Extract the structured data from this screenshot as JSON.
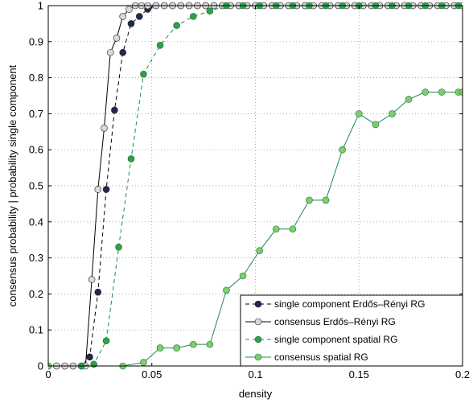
{
  "chart_data": {
    "type": "line",
    "title": "",
    "xlabel": "density",
    "ylabel": "consensus probability | probability single component",
    "xlim": [
      0,
      0.2
    ],
    "ylim": [
      0,
      1
    ],
    "grid": true,
    "legend_position": "bottom-right",
    "x_ticks": [
      0,
      0.05,
      0.1,
      0.15,
      0.2
    ],
    "x_tick_labels": [
      "0",
      "0.05",
      "0.1",
      "0.15",
      "0.2"
    ],
    "y_ticks": [
      0,
      0.1,
      0.2,
      0.3,
      0.4,
      0.5,
      0.6,
      0.7,
      0.8,
      0.9,
      1
    ],
    "y_tick_labels": [
      "0",
      "0.1",
      "0.2",
      "0.3",
      "0.4",
      "0.5",
      "0.6",
      "0.7",
      "0.8",
      "0.9",
      "1"
    ],
    "series": [
      {
        "name": "single component Erdős–Rényi RG",
        "line_color": "#000000",
        "line_style": "dashed",
        "marker_fill": "#1f2a52",
        "x": [
          0,
          0.004,
          0.008,
          0.012,
          0.016,
          0.02,
          0.024,
          0.028,
          0.032,
          0.036,
          0.04,
          0.044,
          0.048,
          0.052,
          0.056,
          0.06,
          0.064,
          0.068,
          0.072,
          0.076,
          0.08,
          0.084,
          0.088,
          0.092,
          0.096,
          0.1,
          0.104,
          0.108,
          0.112,
          0.116,
          0.12,
          0.124,
          0.128,
          0.132,
          0.136,
          0.14,
          0.144,
          0.148,
          0.152,
          0.156,
          0.16,
          0.164,
          0.168,
          0.172,
          0.176,
          0.18,
          0.184,
          0.188,
          0.192,
          0.196,
          0.2
        ],
        "y": [
          0,
          0,
          0,
          0,
          0,
          0.025,
          0.205,
          0.49,
          0.71,
          0.87,
          0.95,
          0.97,
          0.99,
          1,
          1,
          1,
          1,
          1,
          1,
          1,
          1,
          1,
          1,
          1,
          1,
          1,
          1,
          1,
          1,
          1,
          1,
          1,
          1,
          1,
          1,
          1,
          1,
          1,
          1,
          1,
          1,
          1,
          1,
          1,
          1,
          1,
          1,
          1,
          1,
          1,
          1
        ]
      },
      {
        "name": "consensus Erdős–Rényi RG",
        "line_color": "#000000",
        "line_style": "solid",
        "marker_fill": "#d9d9d9",
        "x": [
          0,
          0.004,
          0.008,
          0.012,
          0.016,
          0.018,
          0.021,
          0.024,
          0.027,
          0.03,
          0.033,
          0.036,
          0.039,
          0.042,
          0.045,
          0.048,
          0.052,
          0.056,
          0.06,
          0.064,
          0.068,
          0.072,
          0.076,
          0.08,
          0.084,
          0.088,
          0.092,
          0.096,
          0.1,
          0.104,
          0.108,
          0.112,
          0.116,
          0.12,
          0.124,
          0.128,
          0.132,
          0.136,
          0.14,
          0.144,
          0.148,
          0.152,
          0.156,
          0.16,
          0.164,
          0.168,
          0.172,
          0.176,
          0.18,
          0.184,
          0.188,
          0.192,
          0.196,
          0.2
        ],
        "y": [
          0,
          0,
          0,
          0,
          0,
          0,
          0.24,
          0.49,
          0.66,
          0.87,
          0.91,
          0.97,
          0.99,
          1,
          1,
          1,
          1,
          1,
          1,
          1,
          1,
          1,
          1,
          1,
          1,
          1,
          1,
          1,
          1,
          1,
          1,
          1,
          1,
          1,
          1,
          1,
          1,
          1,
          1,
          1,
          1,
          1,
          1,
          1,
          1,
          1,
          1,
          1,
          1,
          1,
          1,
          1,
          1,
          1
        ]
      },
      {
        "name": "single component spatial RG",
        "line_color": "#1f8a4c",
        "line_style": "dashed",
        "marker_fill": "#2ca24a",
        "x": [
          0,
          0.016,
          0.022,
          0.028,
          0.034,
          0.04,
          0.046,
          0.054,
          0.062,
          0.07,
          0.078,
          0.086,
          0.094,
          0.102,
          0.11,
          0.118,
          0.126,
          0.134,
          0.142,
          0.15,
          0.158,
          0.166,
          0.174,
          0.182,
          0.19,
          0.198
        ],
        "y": [
          0,
          0,
          0.005,
          0.07,
          0.33,
          0.575,
          0.81,
          0.89,
          0.945,
          0.97,
          0.985,
          1,
          1,
          1,
          1,
          1,
          1,
          1,
          1,
          1,
          1,
          1,
          1,
          1,
          1,
          1
        ]
      },
      {
        "name": "consensus spatial RG",
        "line_color": "#1f8a4c",
        "line_style": "solid",
        "marker_fill": "#7ccf6a",
        "x": [
          0,
          0.036,
          0.046,
          0.054,
          0.062,
          0.07,
          0.078,
          0.086,
          0.094,
          0.102,
          0.11,
          0.118,
          0.126,
          0.134,
          0.142,
          0.15,
          0.158,
          0.166,
          0.174,
          0.182,
          0.19,
          0.198,
          0.2
        ],
        "y": [
          0,
          0,
          0.01,
          0.05,
          0.05,
          0.06,
          0.06,
          0.21,
          0.25,
          0.32,
          0.38,
          0.38,
          0.46,
          0.46,
          0.6,
          0.7,
          0.67,
          0.7,
          0.74,
          0.76,
          0.76,
          0.76,
          0.76
        ]
      }
    ]
  }
}
